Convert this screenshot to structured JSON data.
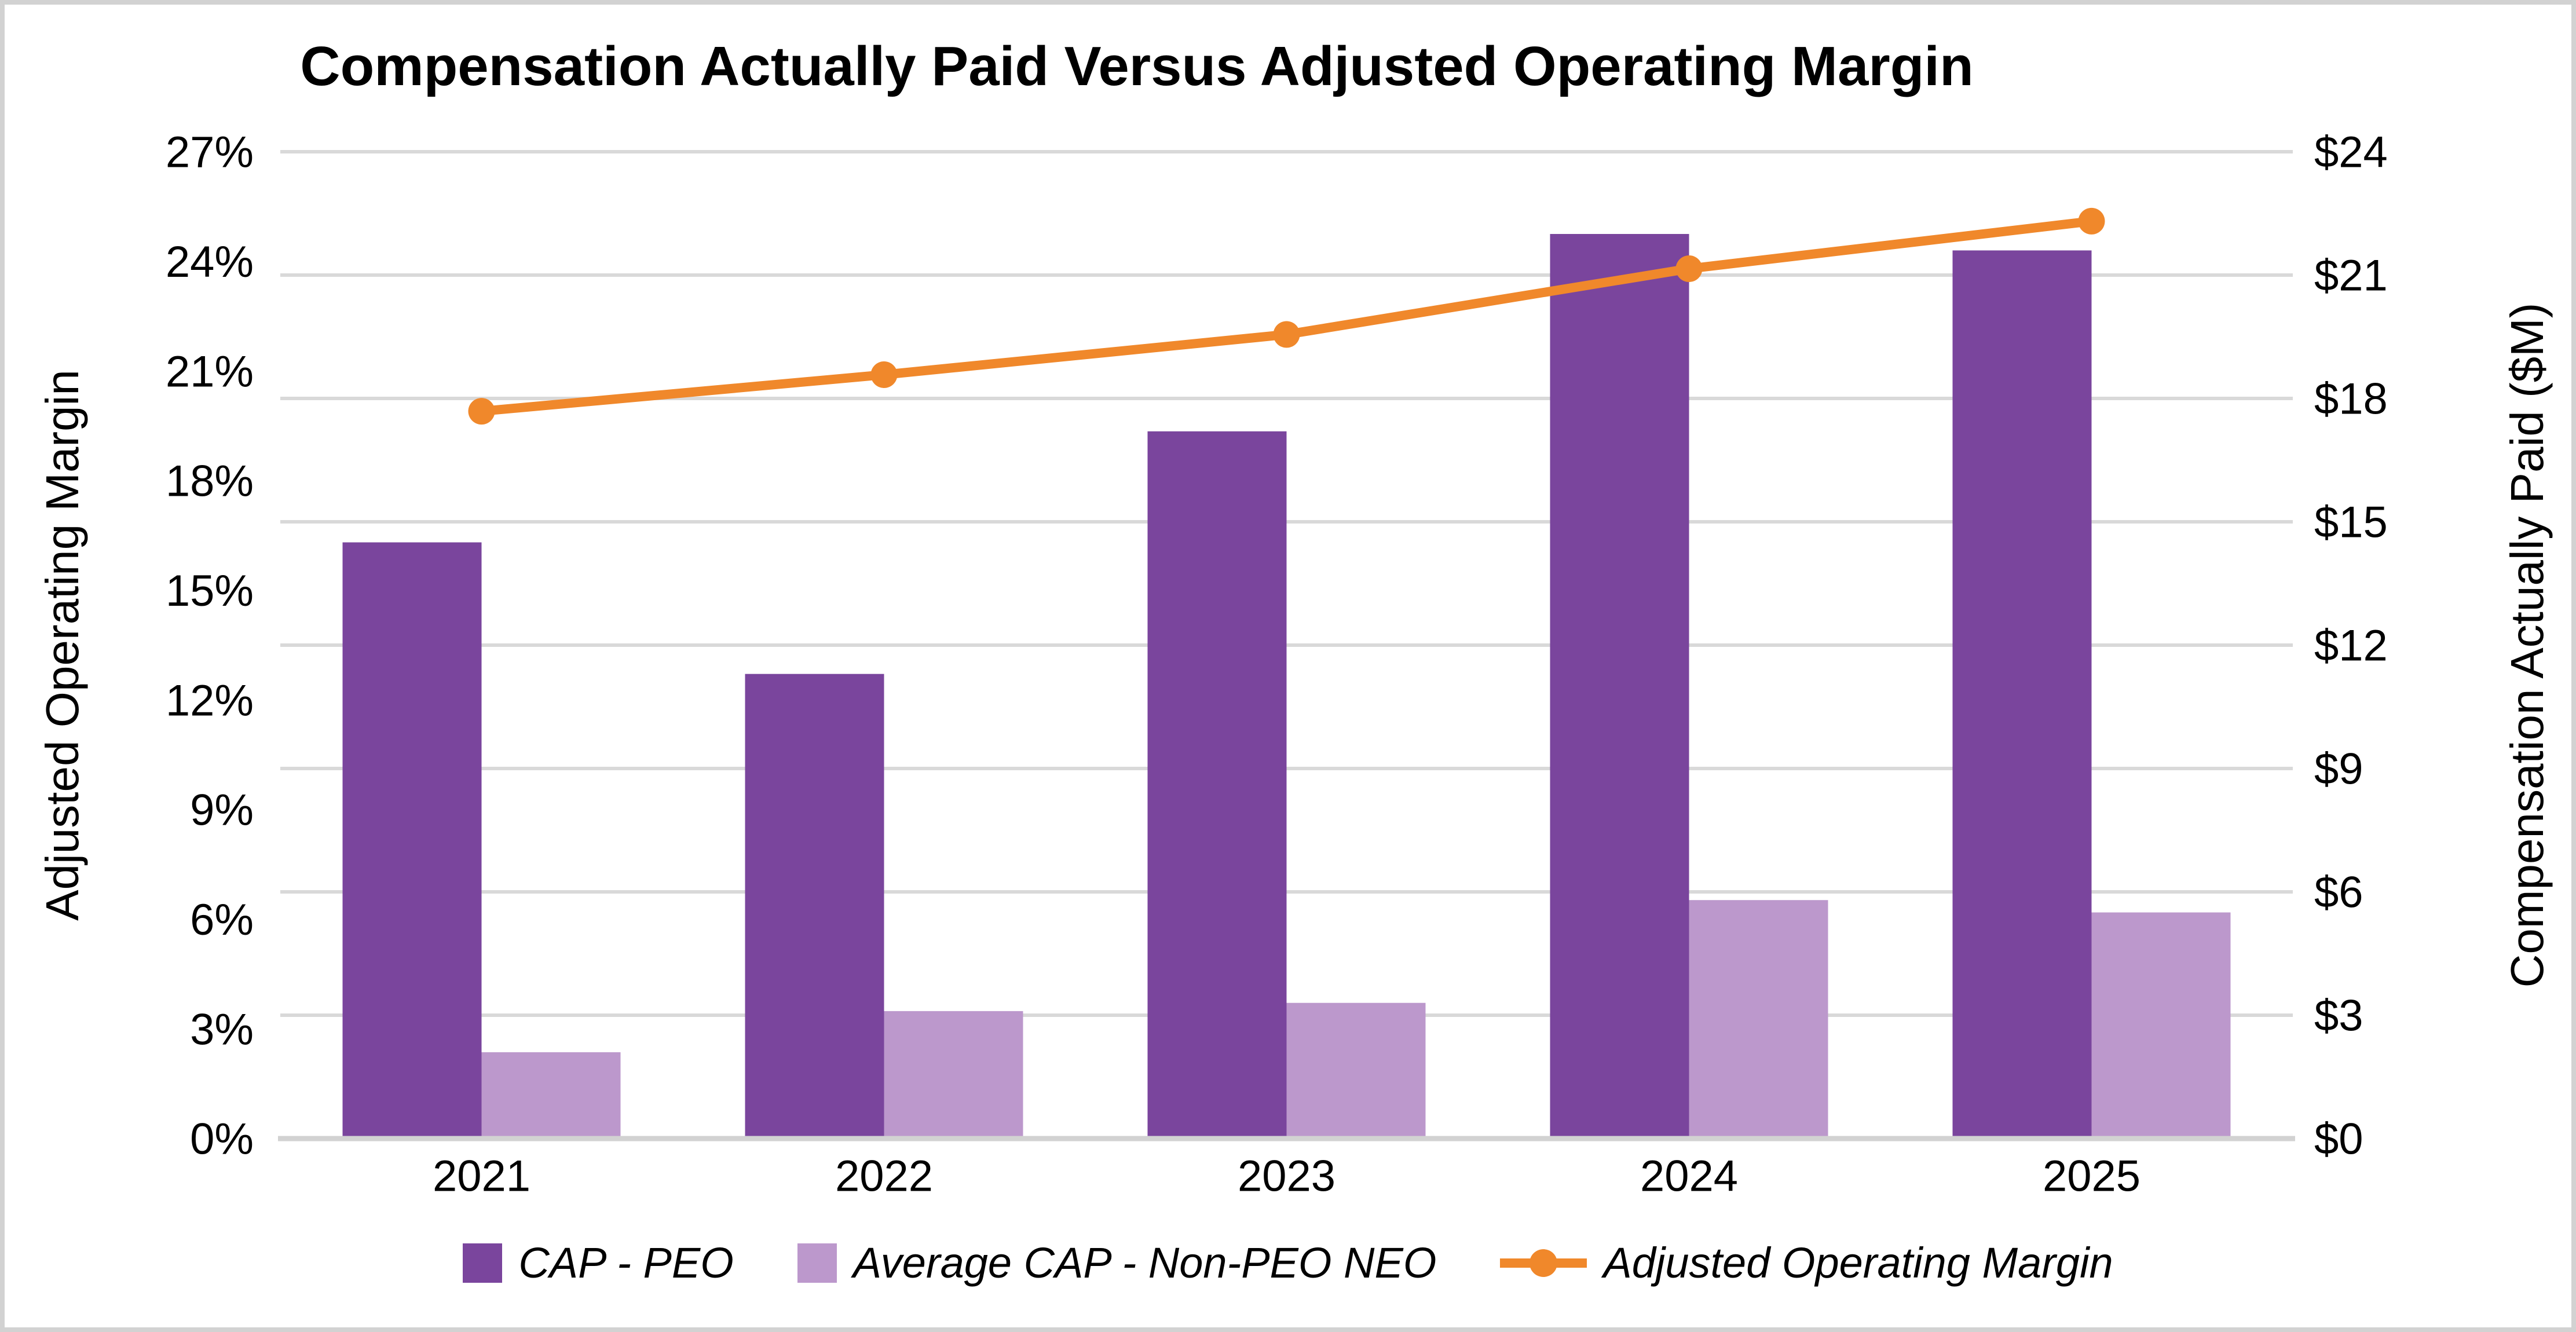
{
  "title": "Compensation Actually Paid Versus Adjusted Operating Margin",
  "chart_data": {
    "type": "combo-bar-line",
    "categories": [
      "2021",
      "2022",
      "2023",
      "2024",
      "2025"
    ],
    "series": [
      {
        "name": "CAP - PEO",
        "type": "bar",
        "axis": "right",
        "color": "#7A459D",
        "values": [
          14.5,
          11.3,
          17.2,
          22.0,
          21.6
        ]
      },
      {
        "name": "Average CAP - Non-PEO NEO",
        "type": "bar",
        "axis": "right",
        "color": "#BC98CC",
        "values": [
          2.1,
          3.1,
          3.3,
          5.8,
          5.5
        ]
      },
      {
        "name": "Adjusted Operating Margin",
        "type": "line",
        "axis": "left",
        "color": "#F0882B",
        "values": [
          19.9,
          20.9,
          22.0,
          23.8,
          25.1
        ]
      }
    ],
    "left_axis": {
      "title": "Adjusted Operating Margin",
      "min": 0,
      "max": 27,
      "step": 3,
      "tick_labels": [
        "0%",
        "3%",
        "6%",
        "9%",
        "12%",
        "15%",
        "18%",
        "21%",
        "24%",
        "27%"
      ]
    },
    "right_axis": {
      "title": "Compensation Actually Paid ($M)",
      "min": 0,
      "max": 24,
      "step": 3,
      "tick_labels": [
        "$0",
        "$3",
        "$6",
        "$9",
        "$12",
        "$15",
        "$18",
        "$21",
        "$24"
      ]
    },
    "grid": "horizontal",
    "gridline_color": "#D9D9D9",
    "axis_line_color": "#D2D2D2",
    "legend_position": "bottom",
    "text_color": "#000000"
  }
}
